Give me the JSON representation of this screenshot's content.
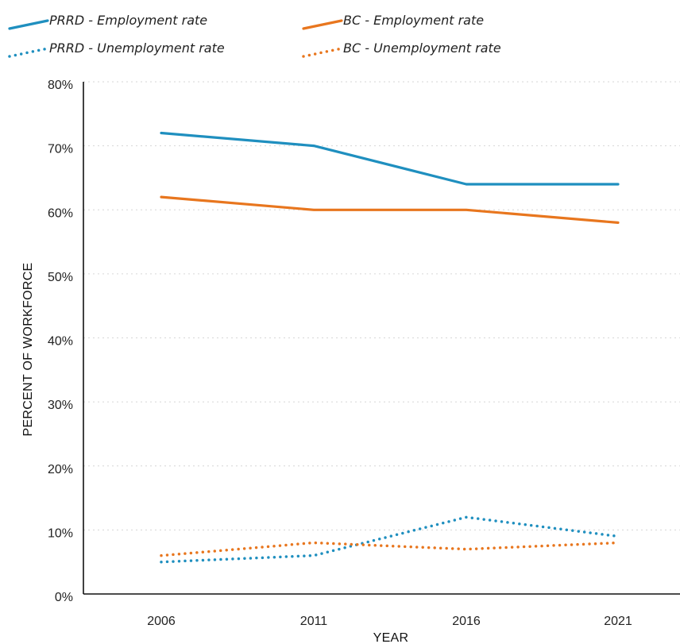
{
  "chart_data": {
    "type": "line",
    "x": [
      "2006",
      "2011",
      "2016",
      "2021"
    ],
    "xlabel": "YEAR",
    "ylabel": "PERCENT OF WORKFORCE",
    "ylim": [
      0,
      80
    ],
    "yticks": [
      "0%",
      "10%",
      "20%",
      "30%",
      "40%",
      "50%",
      "60%",
      "70%",
      "80%"
    ],
    "grid": "horizontal dotted",
    "legend_position": "top",
    "series": [
      {
        "name": "PRRD - Employment rate",
        "values": [
          72,
          70,
          64,
          64
        ],
        "color": "#1f8fbf",
        "style": "solid"
      },
      {
        "name": "BC - Employment rate",
        "values": [
          62,
          60,
          60,
          58
        ],
        "color": "#e8761e",
        "style": "solid"
      },
      {
        "name": "PRRD - Unemployment rate",
        "values": [
          5,
          6,
          12,
          9
        ],
        "color": "#1f8fbf",
        "style": "dotted"
      },
      {
        "name": "BC - Unemployment rate",
        "values": [
          6,
          8,
          7,
          8
        ],
        "color": "#e8761e",
        "style": "dotted"
      }
    ]
  }
}
